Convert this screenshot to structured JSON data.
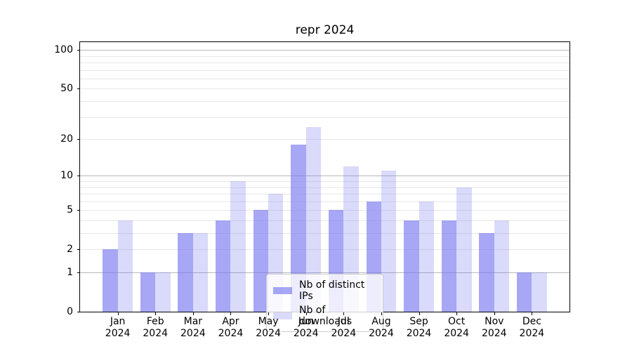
{
  "figure": {
    "title": "repr 2024"
  },
  "colors": {
    "bar_base": "#7878f0",
    "bar_distinct_ips": "rgba(120,120,240,0.65)",
    "bar_downloads": "rgba(120,120,240,0.27)",
    "gridline_minor": "#e8e8e8",
    "gridline_major": "#b8b8b8",
    "axis_spine": "#000000",
    "legend_border": "#cccccc",
    "background": "#ffffff"
  },
  "chart_data": {
    "type": "bar",
    "title": "repr 2024",
    "categories": [
      "Jan 2024",
      "Feb 2024",
      "Mar 2024",
      "Apr 2024",
      "May 2024",
      "Jun 2024",
      "Jul 2024",
      "Aug 2024",
      "Sep 2024",
      "Oct 2024",
      "Nov 2024",
      "Dec 2024"
    ],
    "x_tick_month_labels": [
      "Jan",
      "Feb",
      "Mar",
      "Apr",
      "May",
      "Jun",
      "Jul",
      "Aug",
      "Sep",
      "Oct",
      "Nov",
      "Dec"
    ],
    "x_tick_year_label": "2024",
    "series": [
      {
        "name": "Nb of distinct IPs",
        "values": [
          2,
          1,
          3,
          4,
          5,
          18,
          5,
          6,
          4,
          4,
          3,
          1
        ],
        "color": "#7878f0",
        "alpha": 0.65
      },
      {
        "name": "Nb of downloads",
        "values": [
          4,
          1,
          3,
          9,
          7,
          25,
          12,
          11,
          6,
          8,
          4,
          1
        ],
        "color": "#7878f0",
        "alpha": 0.27
      }
    ],
    "xlabel": "",
    "ylabel": "",
    "yscale": "log1p",
    "ylim": [
      0,
      115
    ],
    "yticks": [
      0,
      1,
      2,
      5,
      10,
      20,
      50,
      100
    ],
    "major_gridlines": [
      1,
      10,
      100
    ],
    "minor_gridlines": [
      2,
      3,
      4,
      5,
      6,
      7,
      8,
      9,
      20,
      30,
      40,
      50,
      60,
      70,
      80,
      90
    ],
    "grid": true,
    "legend_position": "lower center"
  }
}
